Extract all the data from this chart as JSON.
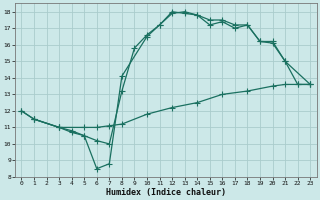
{
  "title": "",
  "xlabel": "Humidex (Indice chaleur)",
  "ylabel": "",
  "bg_color": "#cce8e8",
  "grid_color": "#aacccc",
  "line_color": "#1a7060",
  "ylim": [
    8,
    18.5
  ],
  "xlim": [
    -0.5,
    23.5
  ],
  "yticks": [
    8,
    9,
    10,
    11,
    12,
    13,
    14,
    15,
    16,
    17,
    18
  ],
  "xticks": [
    0,
    1,
    2,
    3,
    4,
    5,
    6,
    7,
    8,
    9,
    10,
    11,
    12,
    13,
    14,
    15,
    16,
    17,
    18,
    19,
    20,
    21,
    22,
    23
  ],
  "series1_x": [
    0,
    1,
    3,
    4,
    5,
    6,
    7,
    8,
    10,
    11,
    12,
    13,
    14,
    15,
    16,
    17,
    18,
    19,
    20,
    21,
    23
  ],
  "series1_y": [
    12,
    11.5,
    11,
    10.7,
    10.5,
    8.5,
    8.8,
    14.1,
    16.5,
    17.2,
    17.9,
    18.0,
    17.8,
    17.5,
    17.5,
    17.2,
    17.2,
    16.2,
    16.1,
    15.0,
    13.6
  ],
  "series2_x": [
    1,
    3,
    4,
    5,
    6,
    7,
    8,
    9,
    10,
    11,
    12,
    13,
    14,
    15,
    16,
    17,
    18,
    19,
    20,
    21,
    22,
    23
  ],
  "series2_y": [
    11.5,
    11,
    10.8,
    10.5,
    10.2,
    10.0,
    13.2,
    15.8,
    16.6,
    17.2,
    18.0,
    17.9,
    17.8,
    17.2,
    17.4,
    17.0,
    17.2,
    16.2,
    16.2,
    15.0,
    13.6,
    13.6
  ],
  "series3_x": [
    0,
    1,
    3,
    5,
    6,
    7,
    8,
    10,
    12,
    14,
    16,
    18,
    20,
    21,
    22,
    23
  ],
  "series3_y": [
    12,
    11.5,
    11,
    11,
    11,
    11.1,
    11.2,
    11.8,
    12.2,
    12.5,
    13.0,
    13.2,
    13.5,
    13.6,
    13.6,
    13.6
  ]
}
